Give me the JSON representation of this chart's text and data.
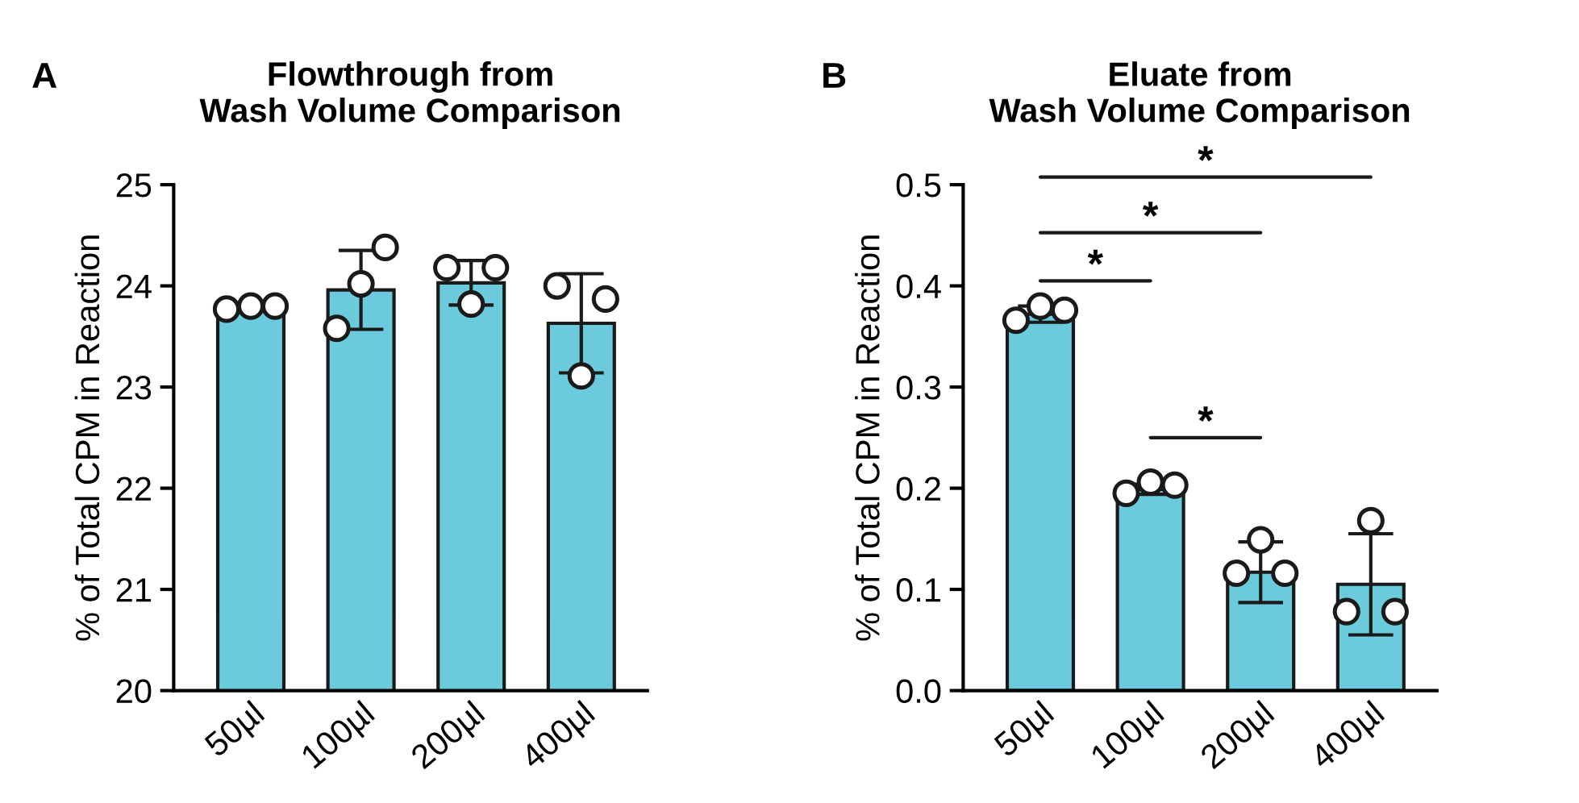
{
  "chart_data": [
    {
      "type": "bar",
      "title": "Flowthrough from\nWash Volume Comparison",
      "ylabel": "% of Total CPM in Reaction",
      "categories": [
        "50µl",
        "100µl",
        "200µl",
        "400µl"
      ],
      "color": "#6bcbdc",
      "values": [
        23.78,
        23.96,
        24.03,
        23.63
      ],
      "errors": [
        null,
        0.39,
        0.22,
        0.49
      ],
      "ylim": [
        20,
        25
      ],
      "yticks": [
        20,
        21,
        22,
        23,
        24,
        25
      ],
      "annotations": [
        "A"
      ],
      "series": [
        {
          "type": "scatter",
          "x": [
            "50µl",
            "50µl",
            "50µl",
            "100µl",
            "100µl",
            "100µl",
            "200µl",
            "200µl",
            "200µl",
            "400µl",
            "400µl",
            "400µl"
          ],
          "values": [
            23.77,
            23.8,
            23.8,
            23.58,
            24.02,
            24.38,
            24.18,
            23.82,
            24.18,
            24.0,
            23.11,
            23.87
          ],
          "color": "#ffffff",
          "marker": "circle"
        }
      ]
    },
    {
      "type": "bar",
      "title": "Eluate from\nWash Volume Comparison",
      "ylabel": "% of Total CPM in Reaction",
      "categories": [
        "50µl",
        "100µl",
        "200µl",
        "400µl"
      ],
      "color": "#6bcbdc",
      "values": [
        0.372,
        0.199,
        0.117,
        0.105
      ],
      "errors": [
        0.008,
        0.005,
        0.03,
        0.05
      ],
      "ylim": [
        0,
        0.5
      ],
      "yticks": [
        {
          "value": 0,
          "label": "0.0"
        },
        0.1,
        0.2,
        0.3,
        0.4,
        0.5
      ],
      "annotations": [
        "B",
        "*",
        "*",
        "*",
        "*"
      ],
      "series": [
        {
          "type": "scatter",
          "x": [
            "50µl",
            "50µl",
            "50µl",
            "100µl",
            "100µl",
            "100µl",
            "200µl",
            "200µl",
            "200µl",
            "400µl",
            "400µl",
            "400µl"
          ],
          "values": [
            0.366,
            0.38,
            0.376,
            0.195,
            0.206,
            0.203,
            0.116,
            0.149,
            0.116,
            0.078,
            0.168,
            0.078
          ],
          "color": "#ffffff",
          "marker": "circle"
        }
      ]
    }
  ]
}
